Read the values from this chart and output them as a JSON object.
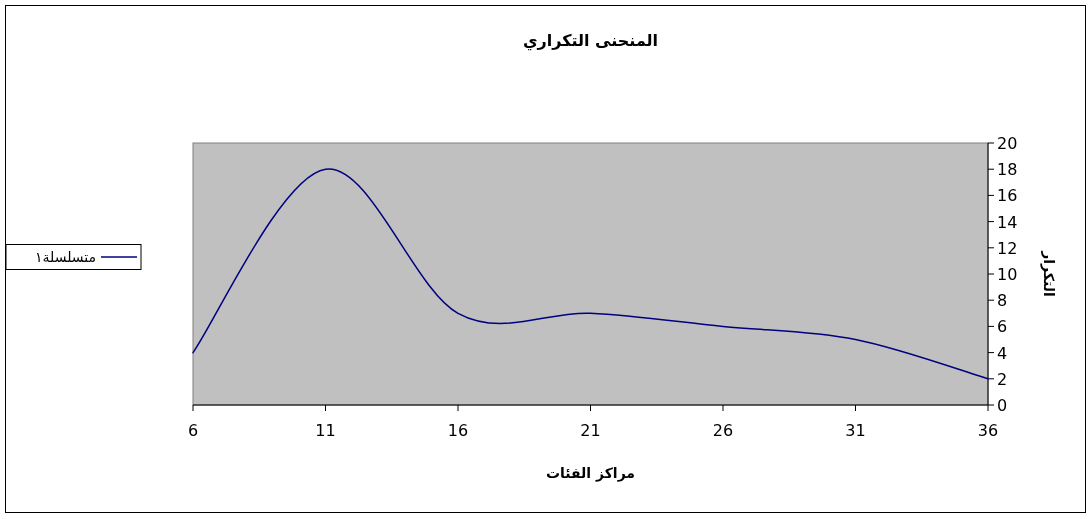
{
  "chart_data": {
    "type": "line",
    "title": "المنحنى التكراري",
    "xlabel": "مراكز الفئات",
    "ylabel": "التكرار",
    "x": [
      6,
      11,
      16,
      21,
      26,
      31,
      36
    ],
    "series": [
      {
        "name": "متسلسلة١",
        "color": "#000080",
        "values": [
          4,
          18,
          7,
          7,
          6,
          5,
          2
        ]
      }
    ],
    "xlim": [
      6,
      36
    ],
    "xticks": [
      6,
      11,
      16,
      21,
      26,
      31,
      36
    ],
    "ylim": [
      0,
      20
    ],
    "yticks": [
      0,
      2,
      4,
      6,
      8,
      10,
      12,
      14,
      16,
      18,
      20
    ],
    "legend": "left",
    "grid": false,
    "marker": "none",
    "line_style": "solid"
  }
}
